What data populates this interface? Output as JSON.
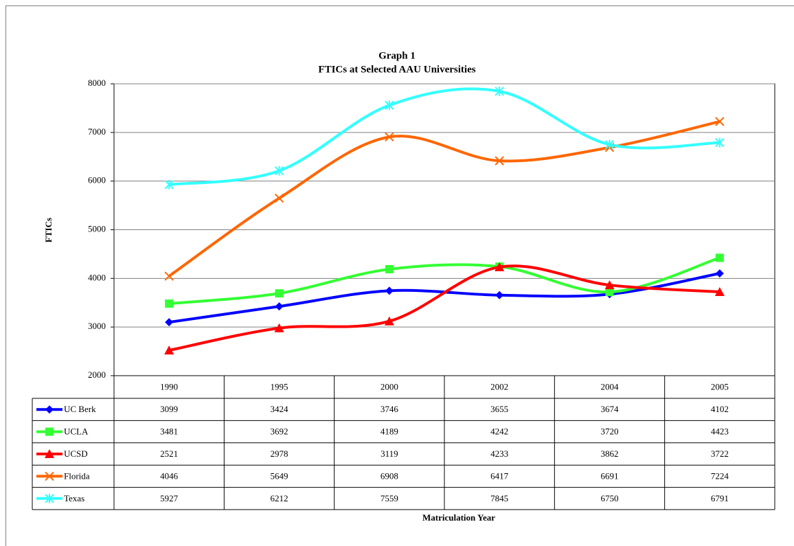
{
  "chart_data": {
    "type": "line",
    "title": "Graph 1",
    "subtitle": "FTICs at Selected AAU Universities",
    "y_label": "FTICs",
    "x_label": "Matriculation Year",
    "categories": [
      "1990",
      "1995",
      "2000",
      "2002",
      "2004",
      "2005"
    ],
    "ylim": [
      2000,
      8000
    ],
    "yticks": [
      2000,
      3000,
      4000,
      5000,
      6000,
      7000,
      8000
    ],
    "grid": true,
    "smooth": true,
    "series": [
      {
        "name": "UC Berk",
        "color": "#0000ff",
        "marker": "diamond",
        "values": [
          3099,
          3424,
          3746,
          3655,
          3674,
          4102
        ]
      },
      {
        "name": "UCLA",
        "color": "#33ff33",
        "marker": "square",
        "values": [
          3481,
          3692,
          4189,
          4242,
          3720,
          4423
        ]
      },
      {
        "name": "UCSD",
        "color": "#ff0000",
        "marker": "triangle",
        "values": [
          2521,
          2978,
          3119,
          4233,
          3862,
          3722
        ]
      },
      {
        "name": "Florida",
        "color": "#ff6600",
        "marker": "x",
        "values": [
          4046,
          5649,
          6908,
          6417,
          6691,
          7224
        ]
      },
      {
        "name": "Texas",
        "color": "#33ffff",
        "marker": "star",
        "values": [
          5927,
          6212,
          7559,
          7845,
          6750,
          6791
        ]
      }
    ]
  }
}
